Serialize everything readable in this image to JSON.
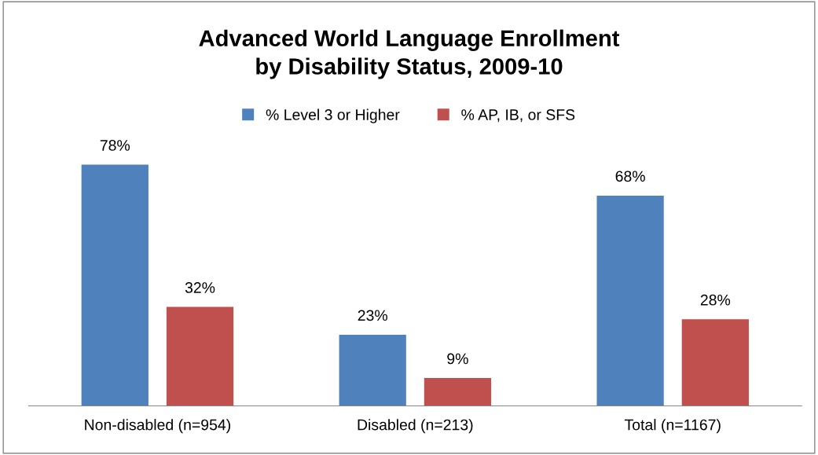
{
  "chart_data": {
    "type": "bar",
    "title": "Advanced World Language Enrollment\nby Disability Status, 2009-10",
    "categories": [
      "Non-disabled (n=954)",
      "Disabled (n=213)",
      "Total (n=1167)"
    ],
    "series": [
      {
        "name": "% Level 3 or Higher",
        "color": "#4f81bd",
        "values": [
          78,
          23,
          68
        ],
        "value_labels": [
          "78%",
          "23%",
          "68%"
        ]
      },
      {
        "name": "% AP, IB, or SFS",
        "color": "#c0504d",
        "values": [
          32,
          9,
          28
        ],
        "value_labels": [
          "32%",
          "9%",
          "28%"
        ]
      }
    ],
    "legend": "top",
    "grid": false
  }
}
